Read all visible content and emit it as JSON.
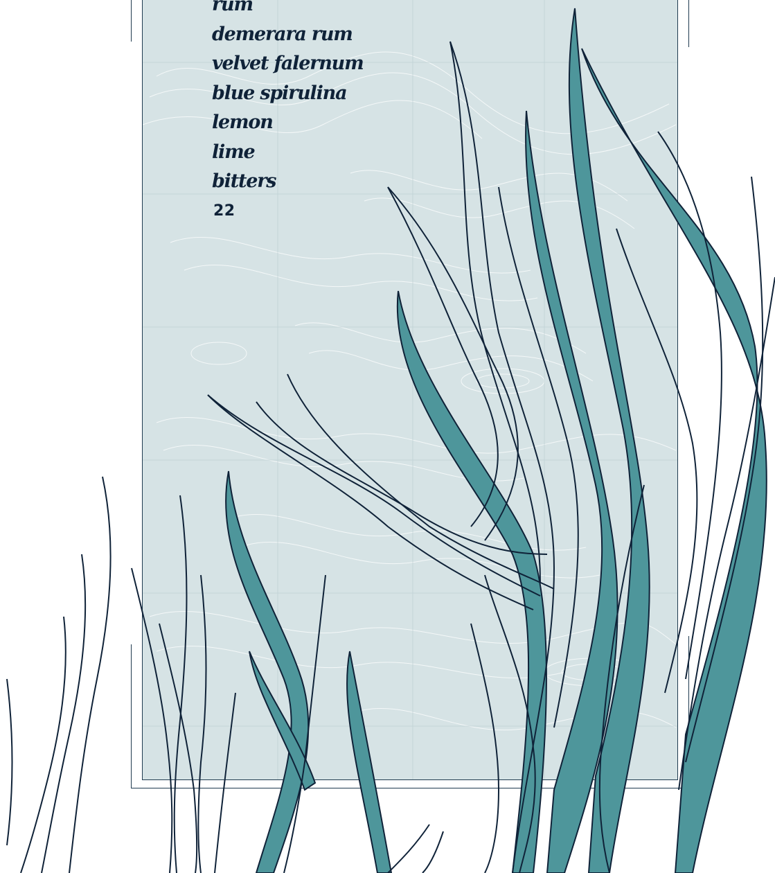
{
  "menu": {
    "ingredients": [
      "rum",
      "demerara rum",
      "velvet falernum",
      "blue spirulina",
      "lemon",
      "lime",
      "bitters"
    ],
    "price": "22"
  },
  "colors": {
    "panel_background": "#d6e3e5",
    "ink": "#0f2238",
    "seaweed_fill": "#4e969b",
    "topo_lines": "#ffffff"
  },
  "icons": [
    "seaweed-illustration",
    "topographic-map-pattern"
  ]
}
